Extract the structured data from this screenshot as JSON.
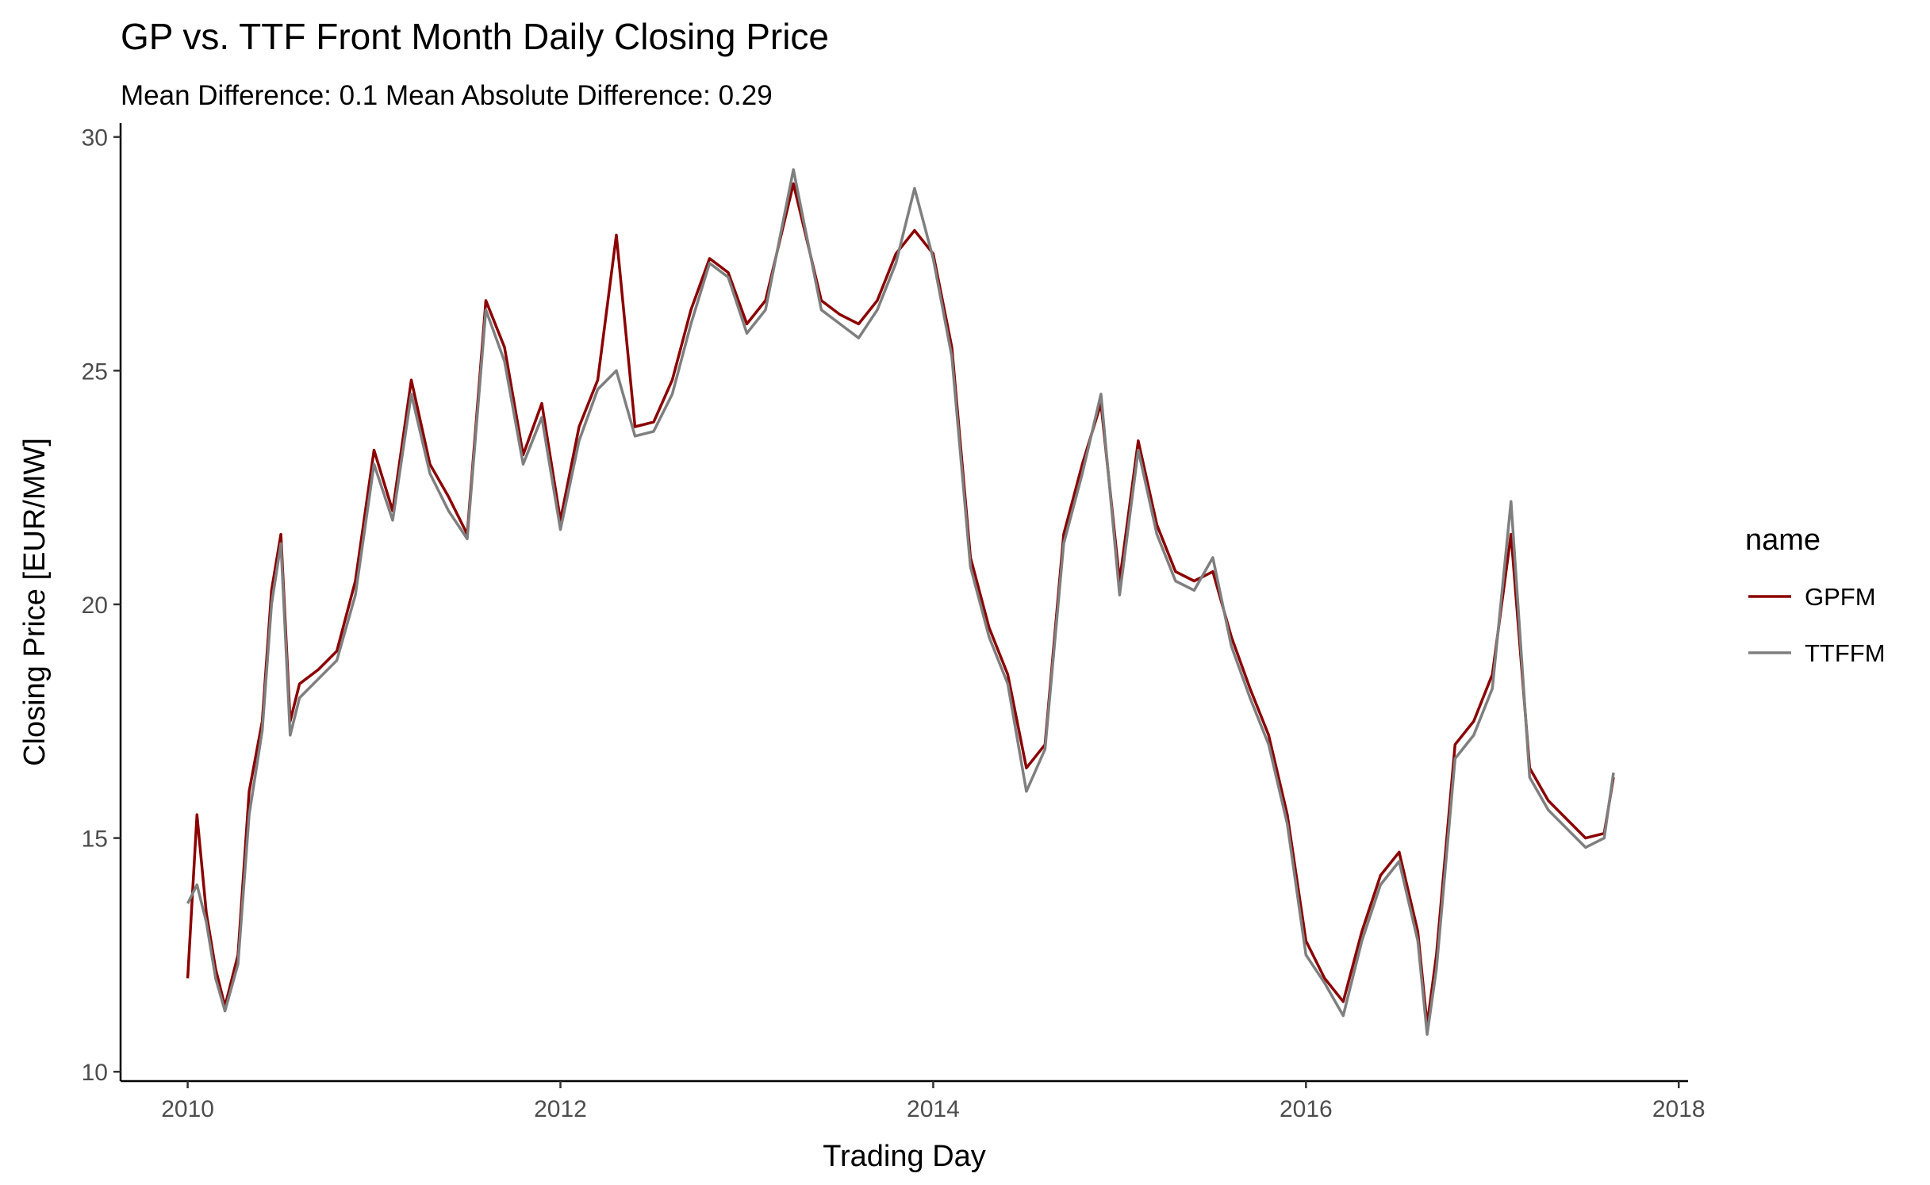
{
  "chart_data": {
    "type": "line",
    "title": "GP vs. TTF Front Month Daily Closing Price",
    "subtitle": "Mean Difference: 0.1 Mean Absolute Difference: 0.29",
    "xlabel": "Trading Day",
    "ylabel": "Closing Price [EUR/MW]",
    "xlim": [
      2009.64,
      2018.05
    ],
    "ylim": [
      9.8,
      30.3
    ],
    "x_ticks": [
      2010,
      2012,
      2014,
      2016,
      2018
    ],
    "x_tick_labels": [
      "2010",
      "2012",
      "2014",
      "2016",
      "2018"
    ],
    "y_ticks": [
      10,
      15,
      20,
      25,
      30
    ],
    "y_tick_labels": [
      "10",
      "15",
      "20",
      "25",
      "30"
    ],
    "grid": false,
    "legend": {
      "title": "name",
      "position": "right"
    },
    "series": [
      {
        "name": "GPFM",
        "color": "#8b0000",
        "x": [
          2010.0,
          2010.05,
          2010.1,
          2010.15,
          2010.2,
          2010.27,
          2010.33,
          2010.4,
          2010.45,
          2010.5,
          2010.55,
          2010.6,
          2010.7,
          2010.8,
          2010.9,
          2011.0,
          2011.1,
          2011.2,
          2011.3,
          2011.4,
          2011.5,
          2011.6,
          2011.7,
          2011.8,
          2011.9,
          2012.0,
          2012.1,
          2012.2,
          2012.3,
          2012.4,
          2012.5,
          2012.6,
          2012.7,
          2012.8,
          2012.9,
          2013.0,
          2013.1,
          2013.25,
          2013.4,
          2013.5,
          2013.6,
          2013.7,
          2013.8,
          2013.9,
          2014.0,
          2014.1,
          2014.2,
          2014.3,
          2014.4,
          2014.5,
          2014.6,
          2014.7,
          2014.8,
          2014.9,
          2015.0,
          2015.1,
          2015.2,
          2015.3,
          2015.4,
          2015.5,
          2015.6,
          2015.7,
          2015.8,
          2015.9,
          2016.0,
          2016.1,
          2016.2,
          2016.3,
          2016.4,
          2016.5,
          2016.6,
          2016.65,
          2016.7,
          2016.8,
          2016.9,
          2017.0,
          2017.1,
          2017.2,
          2017.3,
          2017.4,
          2017.5,
          2017.6,
          2017.65
        ],
        "values": [
          12.0,
          15.5,
          13.4,
          12.2,
          11.4,
          12.5,
          16.0,
          17.5,
          20.3,
          21.5,
          17.5,
          18.3,
          18.6,
          19.0,
          20.5,
          23.3,
          22.0,
          24.8,
          23.0,
          22.3,
          21.5,
          26.5,
          25.5,
          23.2,
          24.3,
          21.8,
          23.8,
          24.8,
          27.9,
          23.8,
          23.9,
          24.8,
          26.3,
          27.4,
          27.1,
          26.0,
          26.5,
          29.0,
          26.5,
          26.2,
          26.0,
          26.5,
          27.5,
          28.0,
          27.5,
          25.5,
          21.0,
          19.5,
          18.5,
          16.5,
          17.0,
          21.5,
          23.0,
          24.3,
          20.5,
          23.5,
          21.7,
          20.7,
          20.5,
          20.7,
          19.3,
          18.2,
          17.2,
          15.5,
          12.8,
          12.0,
          11.5,
          13.0,
          14.2,
          14.7,
          13.0,
          11.0,
          12.5,
          17.0,
          17.5,
          18.5,
          21.5,
          16.5,
          15.8,
          15.4,
          15.0,
          15.1,
          16.3
        ]
      },
      {
        "name": "TTFFM",
        "color": "#7f7f7f",
        "x": [
          2010.0,
          2010.05,
          2010.1,
          2010.15,
          2010.2,
          2010.27,
          2010.33,
          2010.4,
          2010.45,
          2010.5,
          2010.55,
          2010.6,
          2010.7,
          2010.8,
          2010.9,
          2011.0,
          2011.1,
          2011.2,
          2011.3,
          2011.4,
          2011.5,
          2011.6,
          2011.7,
          2011.8,
          2011.9,
          2012.0,
          2012.1,
          2012.2,
          2012.3,
          2012.4,
          2012.5,
          2012.6,
          2012.7,
          2012.8,
          2012.9,
          2013.0,
          2013.1,
          2013.25,
          2013.4,
          2013.5,
          2013.6,
          2013.7,
          2013.8,
          2013.9,
          2014.0,
          2014.1,
          2014.2,
          2014.3,
          2014.4,
          2014.5,
          2014.6,
          2014.7,
          2014.8,
          2014.9,
          2015.0,
          2015.1,
          2015.2,
          2015.3,
          2015.4,
          2015.5,
          2015.6,
          2015.7,
          2015.8,
          2015.9,
          2016.0,
          2016.1,
          2016.2,
          2016.3,
          2016.4,
          2016.5,
          2016.6,
          2016.65,
          2016.7,
          2016.8,
          2016.9,
          2017.0,
          2017.1,
          2017.2,
          2017.3,
          2017.4,
          2017.5,
          2017.6,
          2017.65
        ],
        "values": [
          13.6,
          14.0,
          13.2,
          12.0,
          11.3,
          12.3,
          15.5,
          17.3,
          20.0,
          21.3,
          17.2,
          18.0,
          18.4,
          18.8,
          20.2,
          23.0,
          21.8,
          24.5,
          22.8,
          22.0,
          21.4,
          26.3,
          25.2,
          23.0,
          24.0,
          21.6,
          23.5,
          24.6,
          25.0,
          23.6,
          23.7,
          24.5,
          26.0,
          27.3,
          27.0,
          25.8,
          26.3,
          29.3,
          26.3,
          26.0,
          25.7,
          26.3,
          27.3,
          28.9,
          27.4,
          25.3,
          20.8,
          19.3,
          18.3,
          16.0,
          16.9,
          21.3,
          22.8,
          24.5,
          20.2,
          23.3,
          21.5,
          20.5,
          20.3,
          21.0,
          19.1,
          18.0,
          17.0,
          15.3,
          12.5,
          11.9,
          11.2,
          12.8,
          14.0,
          14.5,
          12.8,
          10.8,
          12.2,
          16.7,
          17.2,
          18.2,
          22.2,
          16.3,
          15.6,
          15.2,
          14.8,
          15.0,
          16.4
        ]
      }
    ]
  }
}
